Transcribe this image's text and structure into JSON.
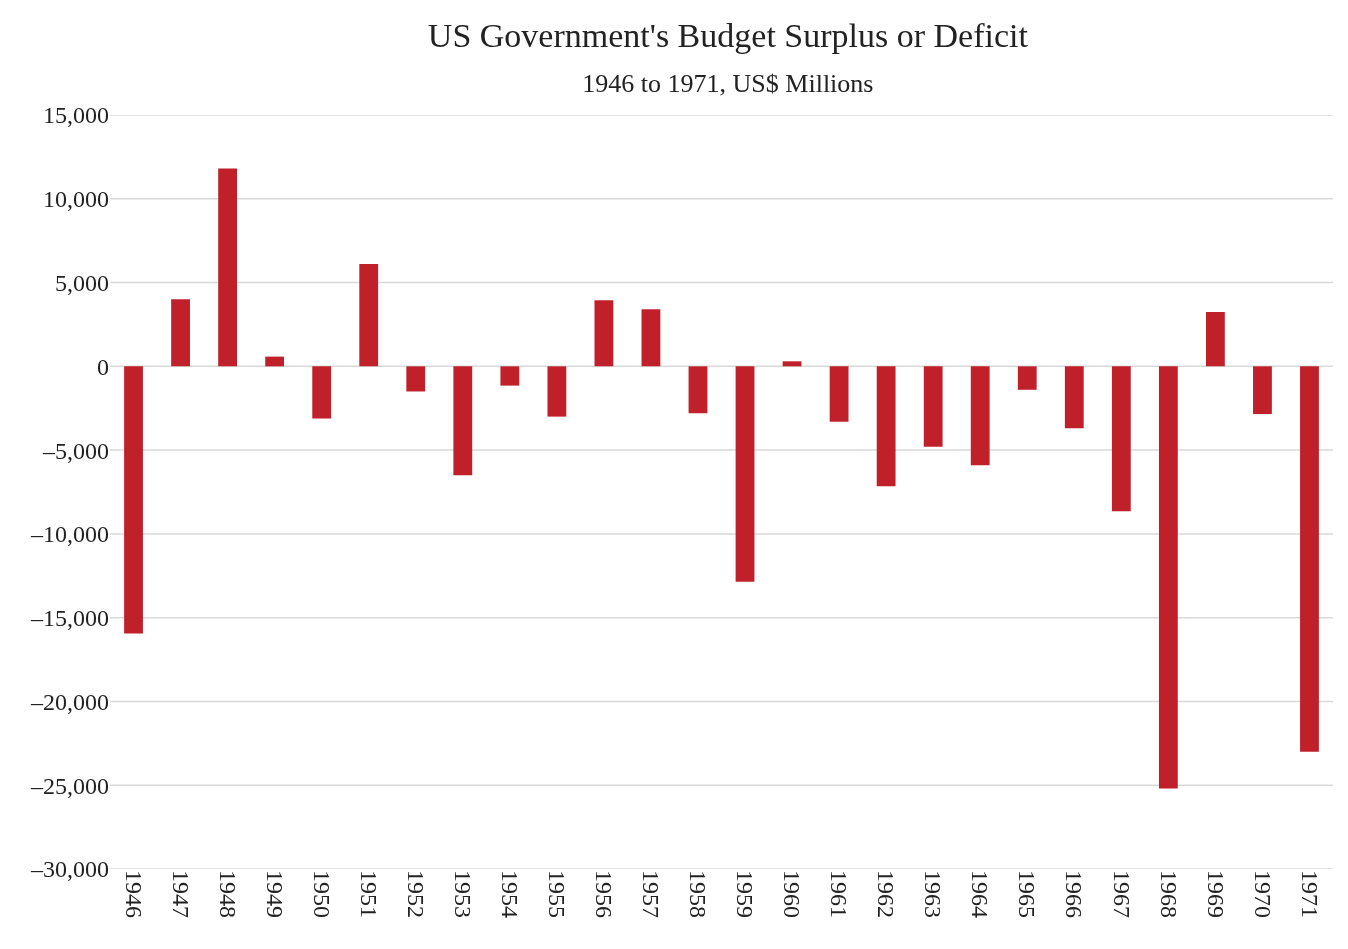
{
  "chart_data": {
    "type": "bar",
    "title": "US Government's Budget Surplus or Deficit",
    "subtitle": "1946 to 1971, US$ Millions",
    "categories": [
      "1946",
      "1947",
      "1948",
      "1949",
      "1950",
      "1951",
      "1952",
      "1953",
      "1954",
      "1955",
      "1956",
      "1957",
      "1958",
      "1959",
      "1960",
      "1961",
      "1962",
      "1963",
      "1964",
      "1965",
      "1966",
      "1967",
      "1968",
      "1969",
      "1970",
      "1971"
    ],
    "values": [
      -15940,
      4000,
      11800,
      580,
      -3120,
      6100,
      -1500,
      -6500,
      -1150,
      -3000,
      3950,
      3400,
      -2800,
      -12850,
      300,
      -3300,
      -7150,
      -4800,
      -5900,
      -1400,
      -3700,
      -8650,
      -25200,
      3250,
      -2850,
      -23000
    ],
    "color": "#c0202a",
    "ylim": [
      -30000,
      15000
    ],
    "yticks": [
      {
        "value": -30000,
        "label": "–30,000"
      },
      {
        "value": -25000,
        "label": "–25,000"
      },
      {
        "value": -20000,
        "label": "–20,000"
      },
      {
        "value": -15000,
        "label": "–15,000"
      },
      {
        "value": -10000,
        "label": "–10,000"
      },
      {
        "value": -5000,
        "label": "–5,000"
      },
      0,
      {
        "value": 5000,
        "label": "5,000"
      },
      {
        "value": 10000,
        "label": "10,000"
      },
      {
        "value": 15000,
        "label": "15,000"
      }
    ],
    "grid": "y"
  }
}
